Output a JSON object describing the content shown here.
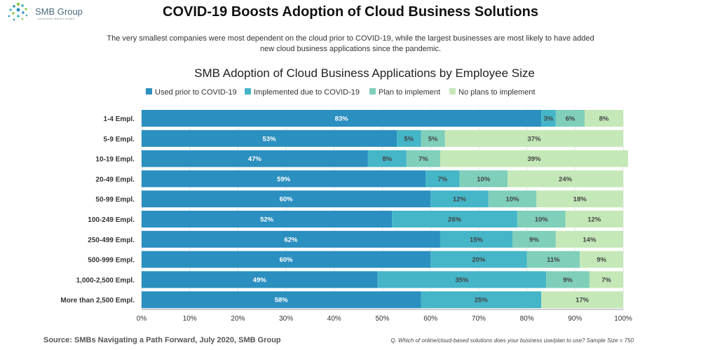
{
  "header": {
    "logo_text": "SMB Group",
    "logo_tagline": "Actionable Market Insight",
    "title": "COVID-19 Boosts Adoption of Cloud Business Solutions",
    "subtitle": "The very smallest companies were most dependent on the cloud prior to COVID-19, while the largest businesses are most likely to have added new cloud business applications since the pandemic."
  },
  "footer": {
    "source": "Source: SMBs Navigating a Path Forward, July 2020, SMB Group",
    "question": "Q. Which of online/cloud-based solutions does your business use/plan to use? Sample Size = 750"
  },
  "chart_data": {
    "type": "bar",
    "orientation": "horizontal",
    "stacked": true,
    "title": "SMB Adoption of Cloud Business Applications by Employee Size",
    "xlim": [
      0,
      100
    ],
    "x_ticks": [
      "0%",
      "10%",
      "20%",
      "30%",
      "40%",
      "50%",
      "60%",
      "70%",
      "80%",
      "90%",
      "100%"
    ],
    "legend_position": "top",
    "categories": [
      "1-4 Empl.",
      "5-9 Empl.",
      "10-19 Empl.",
      "20-49 Empl.",
      "50-99 Empl.",
      "100-249 Empl.",
      "250-499 Empl.",
      "500-999 Empl.",
      "1,000-2,500 Empl.",
      "More than 2,500 Empl."
    ],
    "series": [
      {
        "name": "Used prior to COVID-19",
        "color": "#2b8fc0",
        "values": [
          83,
          53,
          47,
          59,
          60,
          52,
          62,
          60,
          49,
          58
        ]
      },
      {
        "name": "Implemented due to COVID-19",
        "color": "#45b5c8",
        "values": [
          3,
          5,
          8,
          7,
          12,
          26,
          15,
          20,
          35,
          25
        ]
      },
      {
        "name": "Plan to implement",
        "color": "#7fcfbb",
        "values": [
          6,
          5,
          7,
          10,
          10,
          10,
          9,
          11,
          9,
          0
        ]
      },
      {
        "name": "No plans to implement",
        "color": "#c5e8b8",
        "values": [
          8,
          37,
          39,
          24,
          18,
          12,
          14,
          9,
          7,
          17
        ]
      }
    ]
  }
}
